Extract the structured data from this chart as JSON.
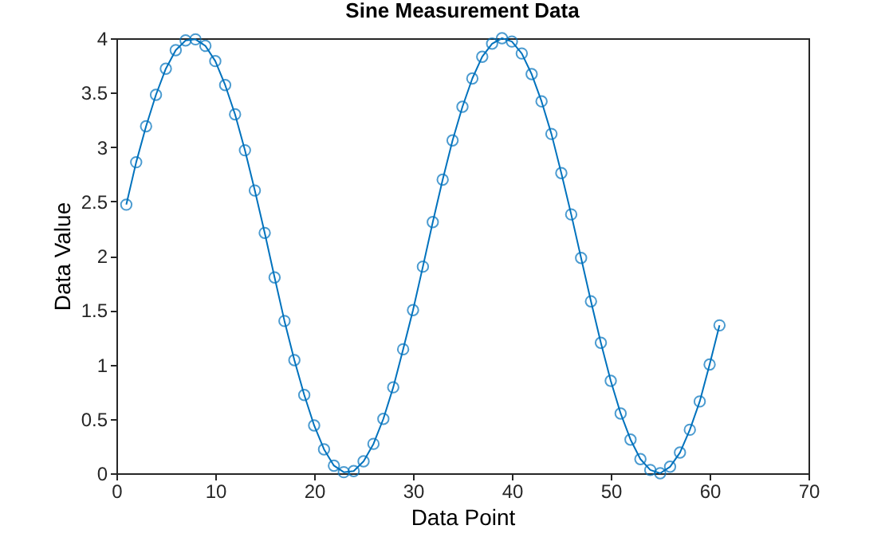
{
  "chart_data": {
    "type": "line",
    "title": "Sine Measurement Data",
    "xlabel": "Data Point",
    "ylabel": "Data Value",
    "x": [
      1,
      2,
      3,
      4,
      5,
      6,
      7,
      8,
      9,
      10,
      11,
      12,
      13,
      14,
      15,
      16,
      17,
      18,
      19,
      20,
      21,
      22,
      23,
      24,
      25,
      26,
      27,
      28,
      29,
      30,
      31,
      32,
      33,
      34,
      35,
      36,
      37,
      38,
      39,
      40,
      41,
      42,
      43,
      44,
      45,
      46,
      47,
      48,
      49,
      50,
      51,
      52,
      53,
      54,
      55,
      56,
      57,
      58,
      59,
      60,
      61
    ],
    "series": [
      {
        "color": "#0072bd",
        "values": [
          2.47,
          2.86,
          3.19,
          3.48,
          3.72,
          3.89,
          3.98,
          3.99,
          3.93,
          3.79,
          3.57,
          3.3,
          2.97,
          2.6,
          2.21,
          1.8,
          1.4,
          1.04,
          0.72,
          0.44,
          0.22,
          0.07,
          0.01,
          0.02,
          0.11,
          0.27,
          0.5,
          0.79,
          1.14,
          1.5,
          1.9,
          2.31,
          2.7,
          3.06,
          3.37,
          3.63,
          3.83,
          3.95,
          4,
          3.97,
          3.86,
          3.67,
          3.42,
          3.12,
          2.76,
          2.38,
          1.98,
          1.58,
          1.2,
          0.85,
          0.55,
          0.31,
          0.13,
          0.03,
          0,
          0.06,
          0.19,
          0.4,
          0.66,
          1,
          1.36
        ]
      }
    ],
    "xlim": [
      0,
      70
    ],
    "xticks": [
      0,
      10,
      20,
      30,
      40,
      50,
      60,
      70
    ],
    "ylim": [
      0,
      4
    ],
    "yticks": [
      0,
      0.5,
      1,
      1.5,
      2,
      2.5,
      3,
      3.5,
      4
    ],
    "grid": false,
    "marker": "circle",
    "line_style": "solid"
  }
}
